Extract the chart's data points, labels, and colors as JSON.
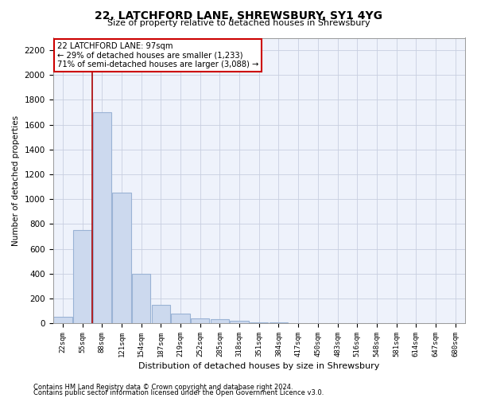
{
  "title": "22, LATCHFORD LANE, SHREWSBURY, SY1 4YG",
  "subtitle": "Size of property relative to detached houses in Shrewsbury",
  "xlabel": "Distribution of detached houses by size in Shrewsbury",
  "ylabel": "Number of detached properties",
  "footnote1": "Contains HM Land Registry data © Crown copyright and database right 2024.",
  "footnote2": "Contains public sector information licensed under the Open Government Licence v3.0.",
  "bar_color": "#ccd9ee",
  "bar_edge_color": "#9ab3d5",
  "annotation_line1": "22 LATCHFORD LANE: 97sqm",
  "annotation_line2": "← 29% of detached houses are smaller (1,233)",
  "annotation_line3": "71% of semi-detached houses are larger (3,088) →",
  "red_line_color": "#aa0000",
  "categories": [
    "22sqm",
    "55sqm",
    "88sqm",
    "121sqm",
    "154sqm",
    "187sqm",
    "219sqm",
    "252sqm",
    "285sqm",
    "318sqm",
    "351sqm",
    "384sqm",
    "417sqm",
    "450sqm",
    "483sqm",
    "516sqm",
    "548sqm",
    "581sqm",
    "614sqm",
    "647sqm",
    "680sqm"
  ],
  "values": [
    50,
    750,
    1700,
    1050,
    400,
    150,
    75,
    40,
    30,
    20,
    10,
    5,
    3,
    2,
    1,
    1,
    0,
    0,
    0,
    0,
    0
  ],
  "ylim": [
    0,
    2300
  ],
  "yticks": [
    0,
    200,
    400,
    600,
    800,
    1000,
    1200,
    1400,
    1600,
    1800,
    2000,
    2200
  ],
  "red_line_x": 1.5,
  "background_color": "#ffffff",
  "plot_bg_color": "#eef2fb",
  "grid_color": "#c8cfe0"
}
